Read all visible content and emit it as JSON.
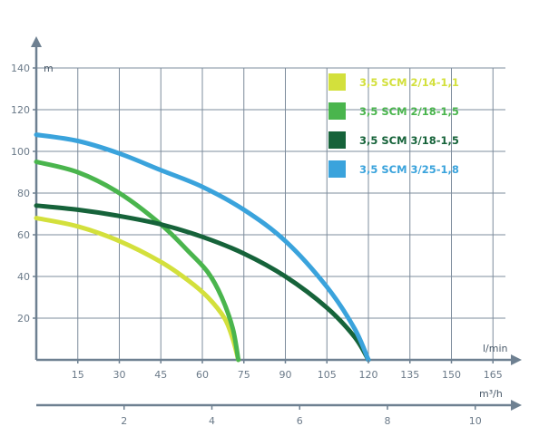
{
  "chart_data": {
    "type": "line",
    "title": "",
    "ylabel": "m",
    "xlabel": "l/min",
    "x2label": "m³/h",
    "xlim": [
      0,
      170
    ],
    "ylim": [
      0,
      140
    ],
    "x2lim": [
      0,
      10.5
    ],
    "xticks": [
      15,
      30,
      45,
      60,
      75,
      90,
      105,
      120,
      135,
      150,
      165
    ],
    "yticks": [
      20,
      40,
      60,
      80,
      100,
      120,
      140
    ],
    "x2ticks": [
      2,
      4,
      6,
      8,
      10
    ],
    "grid": true,
    "legend_position": "top-right",
    "series": [
      {
        "name": "3,5 SCM 2/14-1,1",
        "color": "#d3e03c",
        "x": [
          0,
          15,
          30,
          45,
          55,
          62,
          68,
          71,
          73
        ],
        "y": [
          68,
          64,
          57,
          47,
          38,
          30,
          20,
          10,
          0
        ]
      },
      {
        "name": "3,5 SCM 2/18-1,5",
        "color": "#4ab54d",
        "x": [
          0,
          15,
          30,
          45,
          55,
          62,
          67,
          71,
          73
        ],
        "y": [
          95,
          90,
          80,
          65,
          52,
          42,
          30,
          15,
          0
        ]
      },
      {
        "name": "3,5 SCM 3/18-1,5",
        "color": "#16633a",
        "x": [
          0,
          15,
          30,
          45,
          60,
          75,
          90,
          105,
          115,
          120
        ],
        "y": [
          74,
          72,
          69,
          65,
          59,
          51,
          40,
          25,
          11,
          0
        ]
      },
      {
        "name": "3,5 SCM 3/25-1,8",
        "color": "#3aa3dc",
        "x": [
          0,
          15,
          30,
          45,
          60,
          75,
          90,
          105,
          115,
          120
        ],
        "y": [
          108,
          105,
          99,
          91,
          83,
          72,
          57,
          35,
          15,
          0
        ]
      }
    ]
  }
}
